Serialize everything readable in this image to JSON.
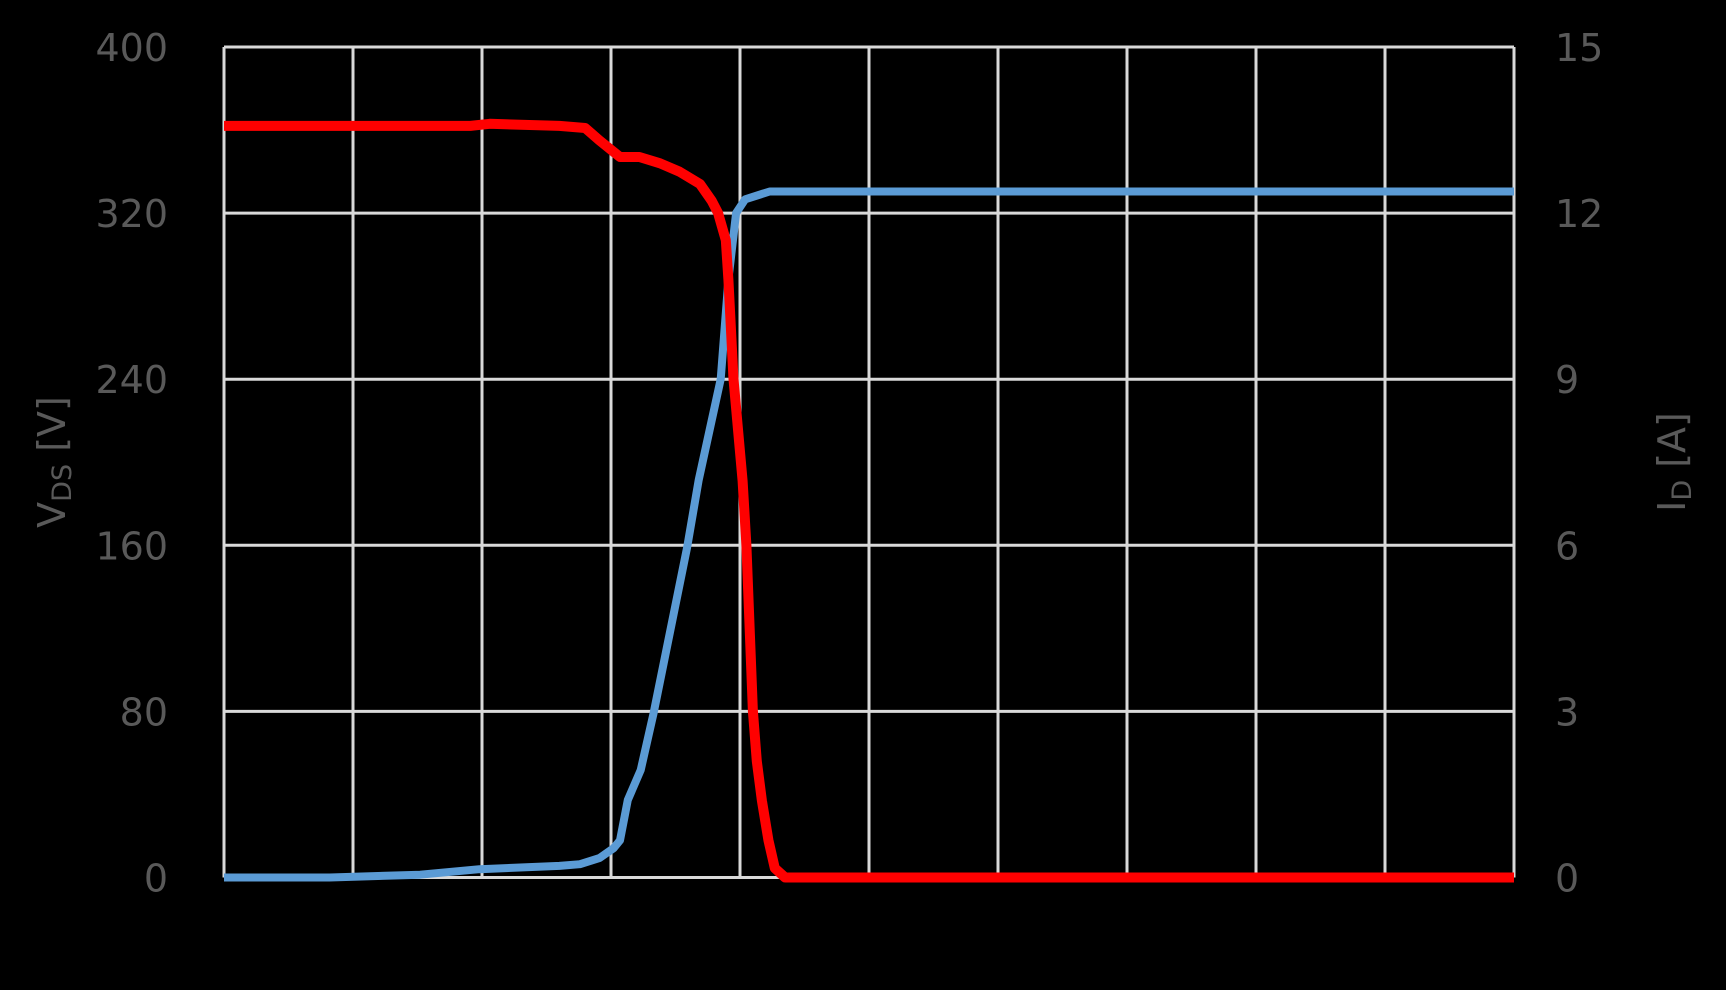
{
  "chart_data": {
    "type": "line",
    "title": "",
    "xlabel": "",
    "x_ticks_visible": false,
    "x_range": [
      0,
      10
    ],
    "x_divisions": 10,
    "grid": true,
    "legend": "none",
    "left_axis": {
      "label_main": "V",
      "label_sub": "DS",
      "label_unit": " [V]",
      "label_full": "VDS [V]",
      "range": [
        0,
        400
      ],
      "ticks": [
        0,
        80,
        160,
        240,
        320,
        400
      ]
    },
    "right_axis": {
      "label_main": "I",
      "label_sub": "D",
      "label_unit": " [A]",
      "label_full": "ID [A]",
      "range": [
        0,
        15
      ],
      "ticks": [
        0,
        3,
        6,
        9,
        12,
        15
      ]
    },
    "series": [
      {
        "name": "VDS",
        "axis": "left",
        "color": "#ff0000",
        "x": [
          0,
          1.91,
          2.06,
          2.6,
          2.8,
          2.91,
          3.07,
          3.22,
          3.38,
          3.53,
          3.69,
          3.78,
          3.83,
          3.89,
          3.91,
          3.95,
          4.02,
          4.05,
          4.1,
          4.13,
          4.17,
          4.22,
          4.27,
          4.35,
          10
        ],
        "values": [
          362,
          362,
          363,
          362,
          361,
          355,
          347,
          347,
          344,
          340,
          334,
          326,
          320,
          307,
          288,
          240,
          191,
          160,
          80,
          56,
          37,
          18,
          4.5,
          0,
          0
        ]
      },
      {
        "name": "ID",
        "axis": "right",
        "color": "#5b9bd5",
        "x": [
          0,
          0.82,
          1.52,
          1.98,
          2.6,
          2.76,
          2.91,
          3.02,
          3.07,
          3.13,
          3.23,
          3.33,
          3.59,
          3.68,
          3.85,
          3.91,
          3.97,
          4.04,
          4.23,
          10
        ],
        "values": [
          0,
          0.0,
          0.05,
          0.15,
          0.21,
          0.24,
          0.35,
          0.53,
          0.67,
          1.4,
          1.94,
          2.97,
          5.96,
          7.18,
          9.0,
          10.8,
          12.0,
          12.25,
          12.39,
          12.39
        ]
      }
    ]
  },
  "colors": {
    "background": "#000000",
    "grid": "#d9d9d9",
    "text": "#595959"
  }
}
